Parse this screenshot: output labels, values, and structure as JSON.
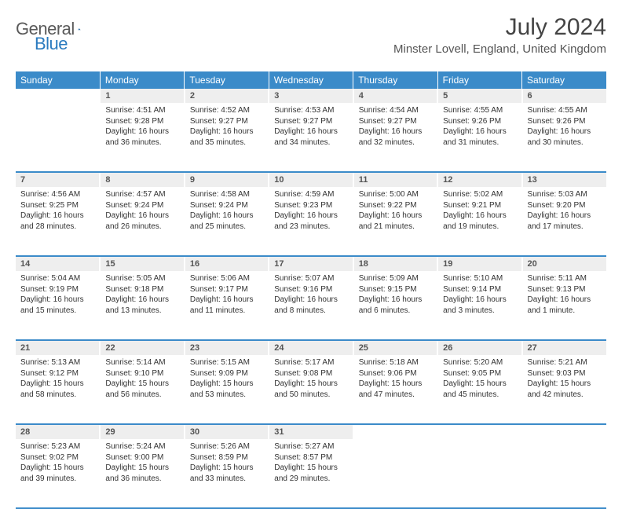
{
  "logo": {
    "text1": "General",
    "text2": "Blue"
  },
  "title": "July 2024",
  "location": "Minster Lovell, England, United Kingdom",
  "colors": {
    "header_bg": "#3b8bc9",
    "header_text": "#ffffff",
    "daynum_bg": "#eeeeee",
    "border": "#3b8bc9",
    "logo_gray": "#5a5a5a",
    "logo_blue": "#2b7bbf"
  },
  "day_headers": [
    "Sunday",
    "Monday",
    "Tuesday",
    "Wednesday",
    "Thursday",
    "Friday",
    "Saturday"
  ],
  "weeks": [
    [
      {
        "n": "",
        "sr": "",
        "ss": "",
        "dl": ""
      },
      {
        "n": "1",
        "sr": "Sunrise: 4:51 AM",
        "ss": "Sunset: 9:28 PM",
        "dl": "Daylight: 16 hours and 36 minutes."
      },
      {
        "n": "2",
        "sr": "Sunrise: 4:52 AM",
        "ss": "Sunset: 9:27 PM",
        "dl": "Daylight: 16 hours and 35 minutes."
      },
      {
        "n": "3",
        "sr": "Sunrise: 4:53 AM",
        "ss": "Sunset: 9:27 PM",
        "dl": "Daylight: 16 hours and 34 minutes."
      },
      {
        "n": "4",
        "sr": "Sunrise: 4:54 AM",
        "ss": "Sunset: 9:27 PM",
        "dl": "Daylight: 16 hours and 32 minutes."
      },
      {
        "n": "5",
        "sr": "Sunrise: 4:55 AM",
        "ss": "Sunset: 9:26 PM",
        "dl": "Daylight: 16 hours and 31 minutes."
      },
      {
        "n": "6",
        "sr": "Sunrise: 4:55 AM",
        "ss": "Sunset: 9:26 PM",
        "dl": "Daylight: 16 hours and 30 minutes."
      }
    ],
    [
      {
        "n": "7",
        "sr": "Sunrise: 4:56 AM",
        "ss": "Sunset: 9:25 PM",
        "dl": "Daylight: 16 hours and 28 minutes."
      },
      {
        "n": "8",
        "sr": "Sunrise: 4:57 AM",
        "ss": "Sunset: 9:24 PM",
        "dl": "Daylight: 16 hours and 26 minutes."
      },
      {
        "n": "9",
        "sr": "Sunrise: 4:58 AM",
        "ss": "Sunset: 9:24 PM",
        "dl": "Daylight: 16 hours and 25 minutes."
      },
      {
        "n": "10",
        "sr": "Sunrise: 4:59 AM",
        "ss": "Sunset: 9:23 PM",
        "dl": "Daylight: 16 hours and 23 minutes."
      },
      {
        "n": "11",
        "sr": "Sunrise: 5:00 AM",
        "ss": "Sunset: 9:22 PM",
        "dl": "Daylight: 16 hours and 21 minutes."
      },
      {
        "n": "12",
        "sr": "Sunrise: 5:02 AM",
        "ss": "Sunset: 9:21 PM",
        "dl": "Daylight: 16 hours and 19 minutes."
      },
      {
        "n": "13",
        "sr": "Sunrise: 5:03 AM",
        "ss": "Sunset: 9:20 PM",
        "dl": "Daylight: 16 hours and 17 minutes."
      }
    ],
    [
      {
        "n": "14",
        "sr": "Sunrise: 5:04 AM",
        "ss": "Sunset: 9:19 PM",
        "dl": "Daylight: 16 hours and 15 minutes."
      },
      {
        "n": "15",
        "sr": "Sunrise: 5:05 AM",
        "ss": "Sunset: 9:18 PM",
        "dl": "Daylight: 16 hours and 13 minutes."
      },
      {
        "n": "16",
        "sr": "Sunrise: 5:06 AM",
        "ss": "Sunset: 9:17 PM",
        "dl": "Daylight: 16 hours and 11 minutes."
      },
      {
        "n": "17",
        "sr": "Sunrise: 5:07 AM",
        "ss": "Sunset: 9:16 PM",
        "dl": "Daylight: 16 hours and 8 minutes."
      },
      {
        "n": "18",
        "sr": "Sunrise: 5:09 AM",
        "ss": "Sunset: 9:15 PM",
        "dl": "Daylight: 16 hours and 6 minutes."
      },
      {
        "n": "19",
        "sr": "Sunrise: 5:10 AM",
        "ss": "Sunset: 9:14 PM",
        "dl": "Daylight: 16 hours and 3 minutes."
      },
      {
        "n": "20",
        "sr": "Sunrise: 5:11 AM",
        "ss": "Sunset: 9:13 PM",
        "dl": "Daylight: 16 hours and 1 minute."
      }
    ],
    [
      {
        "n": "21",
        "sr": "Sunrise: 5:13 AM",
        "ss": "Sunset: 9:12 PM",
        "dl": "Daylight: 15 hours and 58 minutes."
      },
      {
        "n": "22",
        "sr": "Sunrise: 5:14 AM",
        "ss": "Sunset: 9:10 PM",
        "dl": "Daylight: 15 hours and 56 minutes."
      },
      {
        "n": "23",
        "sr": "Sunrise: 5:15 AM",
        "ss": "Sunset: 9:09 PM",
        "dl": "Daylight: 15 hours and 53 minutes."
      },
      {
        "n": "24",
        "sr": "Sunrise: 5:17 AM",
        "ss": "Sunset: 9:08 PM",
        "dl": "Daylight: 15 hours and 50 minutes."
      },
      {
        "n": "25",
        "sr": "Sunrise: 5:18 AM",
        "ss": "Sunset: 9:06 PM",
        "dl": "Daylight: 15 hours and 47 minutes."
      },
      {
        "n": "26",
        "sr": "Sunrise: 5:20 AM",
        "ss": "Sunset: 9:05 PM",
        "dl": "Daylight: 15 hours and 45 minutes."
      },
      {
        "n": "27",
        "sr": "Sunrise: 5:21 AM",
        "ss": "Sunset: 9:03 PM",
        "dl": "Daylight: 15 hours and 42 minutes."
      }
    ],
    [
      {
        "n": "28",
        "sr": "Sunrise: 5:23 AM",
        "ss": "Sunset: 9:02 PM",
        "dl": "Daylight: 15 hours and 39 minutes."
      },
      {
        "n": "29",
        "sr": "Sunrise: 5:24 AM",
        "ss": "Sunset: 9:00 PM",
        "dl": "Daylight: 15 hours and 36 minutes."
      },
      {
        "n": "30",
        "sr": "Sunrise: 5:26 AM",
        "ss": "Sunset: 8:59 PM",
        "dl": "Daylight: 15 hours and 33 minutes."
      },
      {
        "n": "31",
        "sr": "Sunrise: 5:27 AM",
        "ss": "Sunset: 8:57 PM",
        "dl": "Daylight: 15 hours and 29 minutes."
      },
      {
        "n": "",
        "sr": "",
        "ss": "",
        "dl": ""
      },
      {
        "n": "",
        "sr": "",
        "ss": "",
        "dl": ""
      },
      {
        "n": "",
        "sr": "",
        "ss": "",
        "dl": ""
      }
    ]
  ]
}
